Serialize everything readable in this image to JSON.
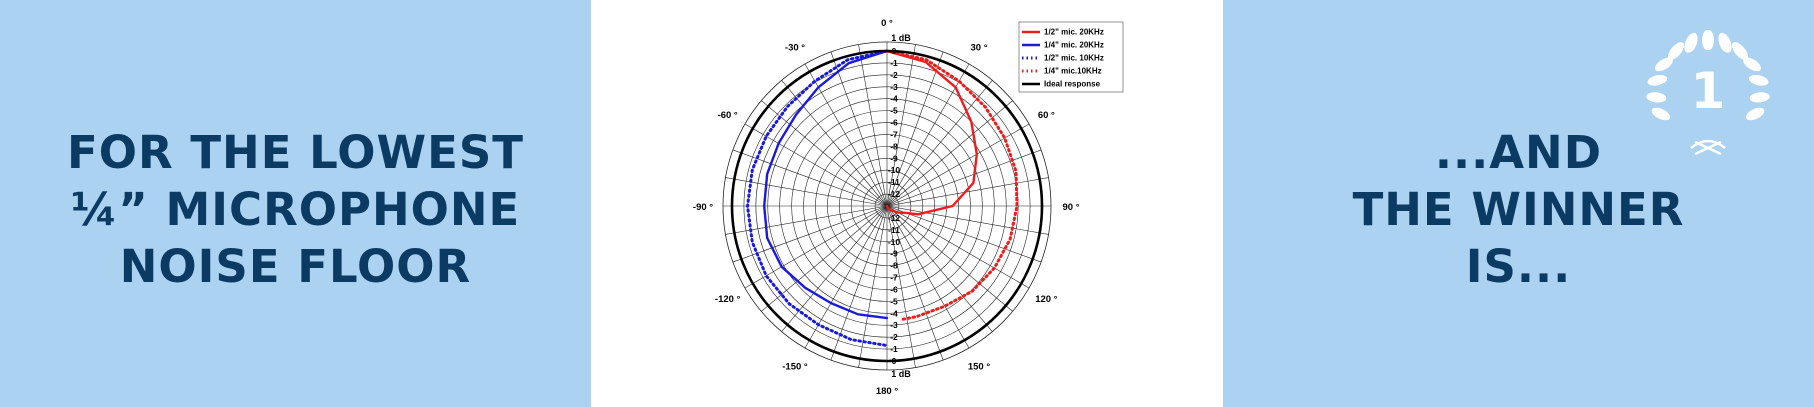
{
  "left_heading": {
    "lines": [
      "FOR THE LOWEST",
      "¼” MICROPHONE",
      "NOISE FLOOR"
    ]
  },
  "right_heading": {
    "lines": [
      "...AND",
      "THE WINNER",
      "IS..."
    ]
  },
  "badge": {
    "number": "1",
    "icon": "laurel-wreath-icon"
  },
  "colors": {
    "panel_bg": "#abd2f1",
    "heading": "#0b3a63",
    "badge": "#ffffff"
  },
  "chart_data": {
    "type": "polar-line",
    "angle_labels": [
      {
        "angle": 0,
        "label": "0 °"
      },
      {
        "angle": 30,
        "label": "30 °"
      },
      {
        "angle": 60,
        "label": "60 °"
      },
      {
        "angle": 90,
        "label": "90 °"
      },
      {
        "angle": 120,
        "label": "120 °"
      },
      {
        "angle": 150,
        "label": "150 °"
      },
      {
        "angle": 180,
        "label": "180 °"
      },
      {
        "angle": -150,
        "label": "-150 °"
      },
      {
        "angle": -120,
        "label": "-120 °"
      },
      {
        "angle": -90,
        "label": "-90 °"
      },
      {
        "angle": -60,
        "label": "-60 °"
      },
      {
        "angle": -30,
        "label": "-30 °"
      }
    ],
    "radial_unit_label": "1 dB",
    "radial_ticks": [
      "0",
      "-1",
      "-2",
      "-3",
      "-4",
      "-5",
      "-6",
      "-7",
      "-8",
      "-9",
      "-10",
      "-11",
      "-12"
    ],
    "rlim": [
      -12,
      1
    ],
    "legend_position": "top-right",
    "series": [
      {
        "name": "1/2\" mic. 20KHz",
        "color": "#ee1c1c",
        "dash": "solid",
        "points": [
          [
            0,
            0
          ],
          [
            15,
            -0.5
          ],
          [
            30,
            -1.5
          ],
          [
            45,
            -3
          ],
          [
            60,
            -4.3
          ],
          [
            75,
            -5.5
          ],
          [
            90,
            -7.5
          ],
          [
            105,
            -10.3
          ],
          [
            110,
            -11.3
          ],
          [
            120,
            -11.9
          ],
          [
            130,
            -12.4
          ],
          [
            145,
            -12.6
          ],
          [
            160,
            -12.9
          ],
          [
            170,
            -13
          ]
        ]
      },
      {
        "name": "1/4\" mic. 20KHz",
        "color": "#1a1adf",
        "dash": "solid",
        "points": [
          [
            0,
            0
          ],
          [
            -15,
            -0.6
          ],
          [
            -30,
            -1.5
          ],
          [
            -45,
            -2.2
          ],
          [
            -60,
            -2.5
          ],
          [
            -75,
            -2.6
          ],
          [
            -90,
            -2.7
          ],
          [
            -105,
            -2.6
          ],
          [
            -120,
            -2.8
          ],
          [
            -135,
            -3.3
          ],
          [
            -150,
            -3.6
          ],
          [
            -165,
            -3.6
          ],
          [
            -180,
            -3.6
          ]
        ]
      },
      {
        "name": "1/2\" mic. 10KHz",
        "color": "#1a1adf",
        "dash": "dotted",
        "points": [
          [
            0,
            0
          ],
          [
            -15,
            -0.3
          ],
          [
            -30,
            -0.9
          ],
          [
            -45,
            -1.2
          ],
          [
            -60,
            -1.3
          ],
          [
            -75,
            -1.3
          ],
          [
            -90,
            -1.3
          ],
          [
            -105,
            -1.3
          ],
          [
            -120,
            -1.3
          ],
          [
            -135,
            -1.4
          ],
          [
            -150,
            -1.5
          ],
          [
            -165,
            -1.4
          ],
          [
            -180,
            -1.3
          ]
        ]
      },
      {
        "name": "1/4\" mic.10KHz",
        "color": "#ee1c1c",
        "dash": "dotted",
        "points": [
          [
            0,
            0
          ],
          [
            15,
            -0.3
          ],
          [
            30,
            -0.9
          ],
          [
            45,
            -1.3
          ],
          [
            60,
            -1.6
          ],
          [
            75,
            -1.8
          ],
          [
            90,
            -2.1
          ],
          [
            105,
            -2.3
          ],
          [
            120,
            -2.6
          ],
          [
            135,
            -2.9
          ],
          [
            150,
            -3.3
          ],
          [
            165,
            -3.4
          ],
          [
            172,
            -3.4
          ]
        ]
      },
      {
        "name": "Ideal response",
        "color": "#000000",
        "dash": "solid",
        "points": [
          [
            0,
            0
          ],
          [
            90,
            0
          ],
          [
            180,
            0
          ],
          [
            270,
            0
          ],
          [
            360,
            0
          ]
        ]
      }
    ]
  }
}
